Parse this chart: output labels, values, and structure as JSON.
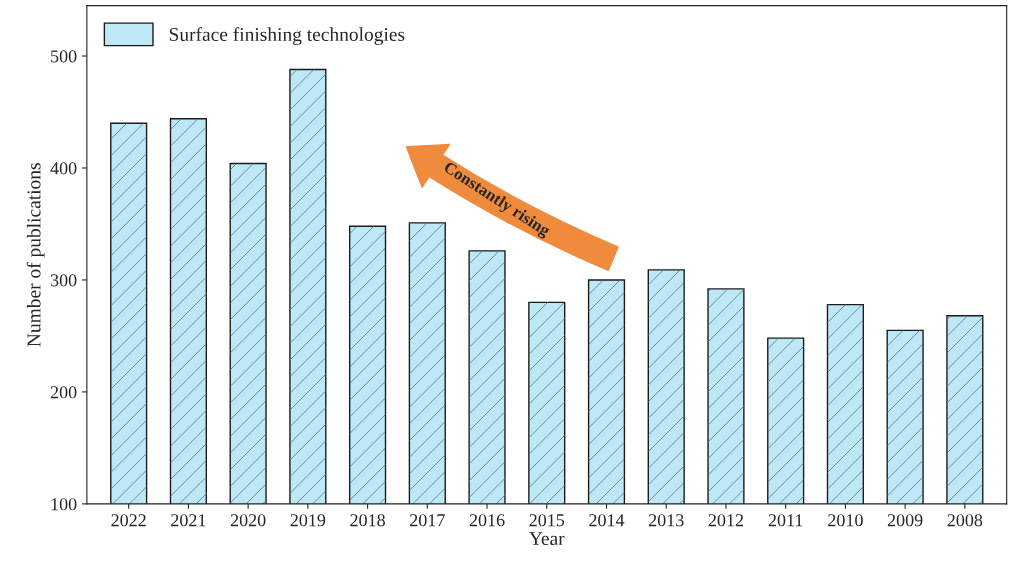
{
  "chart_data": {
    "type": "bar",
    "xlabel": "Year",
    "ylabel": "Number of publications",
    "categories": [
      "2022",
      "2021",
      "2020",
      "2019",
      "2018",
      "2017",
      "2016",
      "2015",
      "2014",
      "2013",
      "2012",
      "2011",
      "2010",
      "2009",
      "2008"
    ],
    "series": [
      {
        "name": "Surface finishing technologies",
        "color": "#bfe8f7",
        "values": [
          440,
          444,
          404,
          488,
          348,
          351,
          326,
          280,
          300,
          309,
          292,
          248,
          278,
          255,
          268
        ]
      }
    ],
    "ylim": [
      100,
      545
    ],
    "yticks": [
      100,
      200,
      300,
      400,
      500
    ],
    "grid": false,
    "legend": "top left",
    "annotations": [
      "Constantly rising"
    ]
  }
}
